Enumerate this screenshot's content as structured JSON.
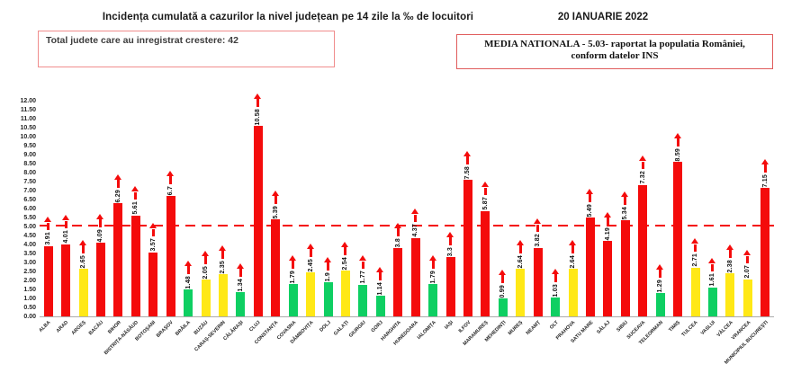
{
  "header": {
    "title": "Incidența cumulată a cazurilor la nivel județean pe 14 zile la ‰ de locuitori",
    "date": "20 IANUARIE 2022",
    "growth_box_label": "Total judete care au inregistrat crestere: 42",
    "national_box_line1": "MEDIA NATIONALA - 5.03-  raportat la populatia României,",
    "national_box_line2": "conform datelor INS"
  },
  "chart_data": {
    "type": "bar",
    "title": "Incidența cumulată a cazurilor la nivel județean pe 14 zile la ‰ de locuitori",
    "xlabel": "",
    "ylabel": "",
    "ylim": [
      0,
      12
    ],
    "ytick_step": 0.5,
    "grid": false,
    "legend": "none",
    "national_average": 5.03,
    "national_average_line_style": "red dashed horizontal line",
    "trend_arrow_on_every_bar": "up",
    "palette": {
      "red": "#f40b0b",
      "yellow": "#ffe816",
      "green": "#0ecf62"
    },
    "categories": [
      "ALBA",
      "ARAD",
      "ARGEȘ",
      "BACĂU",
      "BIHOR",
      "BISTRIȚA-NĂSĂUD",
      "BOTOȘANI",
      "BRAȘOV",
      "BRĂILA",
      "BUZĂU",
      "CARAȘ-SEVERIN",
      "CĂLĂRAȘI",
      "CLUJ",
      "CONSTANȚA",
      "COVASNA",
      "DÂMBOVIȚA",
      "DOLJ",
      "GALAȚI",
      "GIURGIU",
      "GORJ",
      "HARGHITA",
      "HUNEDOARA",
      "IALOMIȚA",
      "IAȘI",
      "ILFOV",
      "MARAMUREȘ",
      "MEHEDINȚI",
      "MUREȘ",
      "NEAMȚ",
      "OLT",
      "PRAHOVA",
      "SATU MARE",
      "SĂLAJ",
      "SIBIU",
      "SUCEAVA",
      "TELEORMAN",
      "TIMIȘ",
      "TULCEA",
      "VASLUI",
      "VÂLCEA",
      "VRANCEA",
      "MUNICIPIUL BUCUREȘTI"
    ],
    "values": [
      3.91,
      4.01,
      2.65,
      4.09,
      6.29,
      5.61,
      3.57,
      6.7,
      1.48,
      2.05,
      2.35,
      1.34,
      10.58,
      5.39,
      1.79,
      2.45,
      1.9,
      2.54,
      1.77,
      1.14,
      3.8,
      4.37,
      1.79,
      3.3,
      7.58,
      5.87,
      0.99,
      2.64,
      3.82,
      1.03,
      2.64,
      5.49,
      4.19,
      5.34,
      7.32,
      1.29,
      8.59,
      2.71,
      1.61,
      2.38,
      2.07,
      7.15
    ],
    "value_labels": [
      "3.91",
      "4.01",
      "2.65",
      "4.09",
      "6.29",
      "5.61",
      "3.57",
      "6.7",
      "1.48",
      "2.05",
      "2.35",
      "1.34",
      "10.58",
      "5.39",
      "1.79",
      "2.45",
      "1.9",
      "2.54",
      "1.77",
      "1.14",
      "3.8",
      "4.37",
      "1.79",
      "3.3",
      "7.58",
      "5.87",
      "0.99",
      "2.64",
      "3.82",
      "1.03",
      "2.64",
      "5.49",
      "4.19",
      "5.34",
      "7.32",
      "1.29",
      "8.59",
      "2.71",
      "1.61",
      "2.38",
      "2.07",
      "7.15"
    ],
    "bar_colors": [
      "red",
      "red",
      "yellow",
      "red",
      "red",
      "red",
      "red",
      "red",
      "green",
      "yellow",
      "yellow",
      "green",
      "red",
      "red",
      "green",
      "yellow",
      "green",
      "yellow",
      "green",
      "green",
      "red",
      "red",
      "green",
      "red",
      "red",
      "red",
      "green",
      "yellow",
      "red",
      "green",
      "yellow",
      "red",
      "red",
      "red",
      "red",
      "green",
      "red",
      "yellow",
      "green",
      "yellow",
      "yellow",
      "red"
    ]
  }
}
